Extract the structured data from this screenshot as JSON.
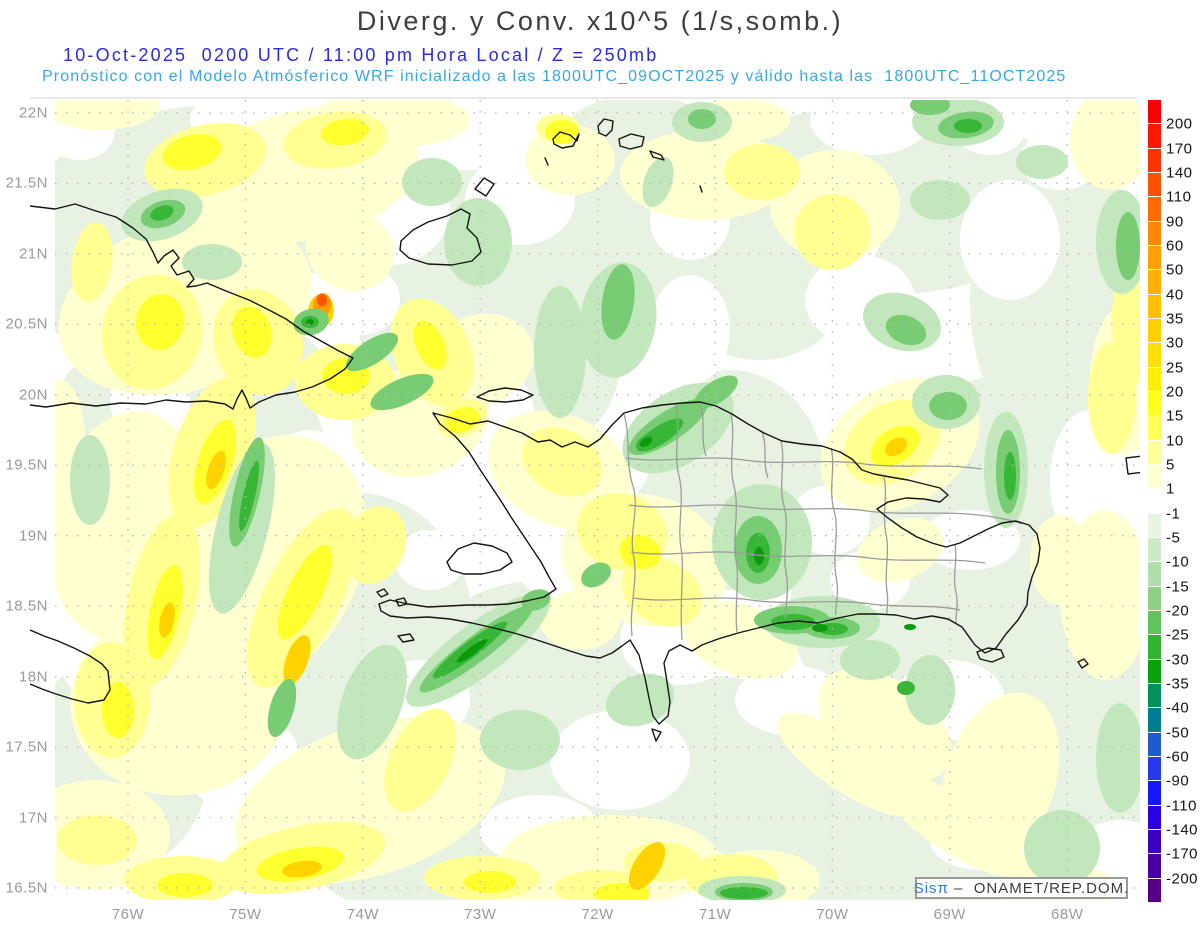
{
  "header": {
    "title": "Diverg. y Conv. x10^5 (1/s,somb.)",
    "datetime_line": "10-Oct-2025  0200 UTC / 11:00 pm Hora Local / Z = 250mb",
    "model_line": "Pronóstico con el Modelo Atmósferico WRF inicializado a las 1800UTC_09OCT2025 y válido hasta las  1800UTC_11OCT2025",
    "colors": {
      "title": "#3e3e3e",
      "datetime_line": "#2a2ae2",
      "model_line": "#35a7e8"
    }
  },
  "map": {
    "lat_labels": [
      "22N",
      "21.5N",
      "21N",
      "20.5N",
      "20N",
      "19.5N",
      "19N",
      "18.5N",
      "18N",
      "17.5N",
      "17N",
      "16.5N"
    ],
    "lon_labels": [
      "76W",
      "75W",
      "74W",
      "73W",
      "72W",
      "71W",
      "70W",
      "69W",
      "68W"
    ],
    "axis_label_color": "#9a9a9a",
    "shading_colors": {
      "divergence_yellow": "#ffff2e",
      "divergence_gold": "#ffd200",
      "divergence_orange": "#ff9a00",
      "convergence_pale_green": "#e7f2e2",
      "convergence_green": "#38b638",
      "convergence_deep_green": "#0c9a0c"
    }
  },
  "colorbar": {
    "labels": [
      "200",
      "170",
      "140",
      "110",
      "90",
      "60",
      "50",
      "40",
      "35",
      "30",
      "25",
      "20",
      "15",
      "10",
      "5",
      "1",
      "-1",
      "-5",
      "-10",
      "-15",
      "-20",
      "-25",
      "-30",
      "-35",
      "-40",
      "-50",
      "-60",
      "-90",
      "-110",
      "-140",
      "-170",
      "-200"
    ],
    "colors": [
      "#fa0000",
      "#fb1800",
      "#fc3400",
      "#fd5000",
      "#fe6c00",
      "#ff8800",
      "#ffa000",
      "#ffb000",
      "#ffc000",
      "#ffd000",
      "#ffe000",
      "#fff000",
      "#ffff1c",
      "#ffff5c",
      "#ffff9c",
      "#ffffd0",
      "#ffffff",
      "#e6f4e2",
      "#cdeac8",
      "#b0deaa",
      "#8cd086",
      "#62c25e",
      "#34b232",
      "#0aa00a",
      "#00915c",
      "#007d92",
      "#1e5ad2",
      "#2739ea",
      "#1518fc",
      "#2b00e4",
      "#3c00c2",
      "#4a00a2",
      "#570086"
    ]
  },
  "credit": {
    "brand": "Sis",
    "pi": "π",
    "rest": " –  ONAMET/REP.DOM.",
    "brand_color": "#3377ee",
    "text_color": "#3a3a3a"
  }
}
